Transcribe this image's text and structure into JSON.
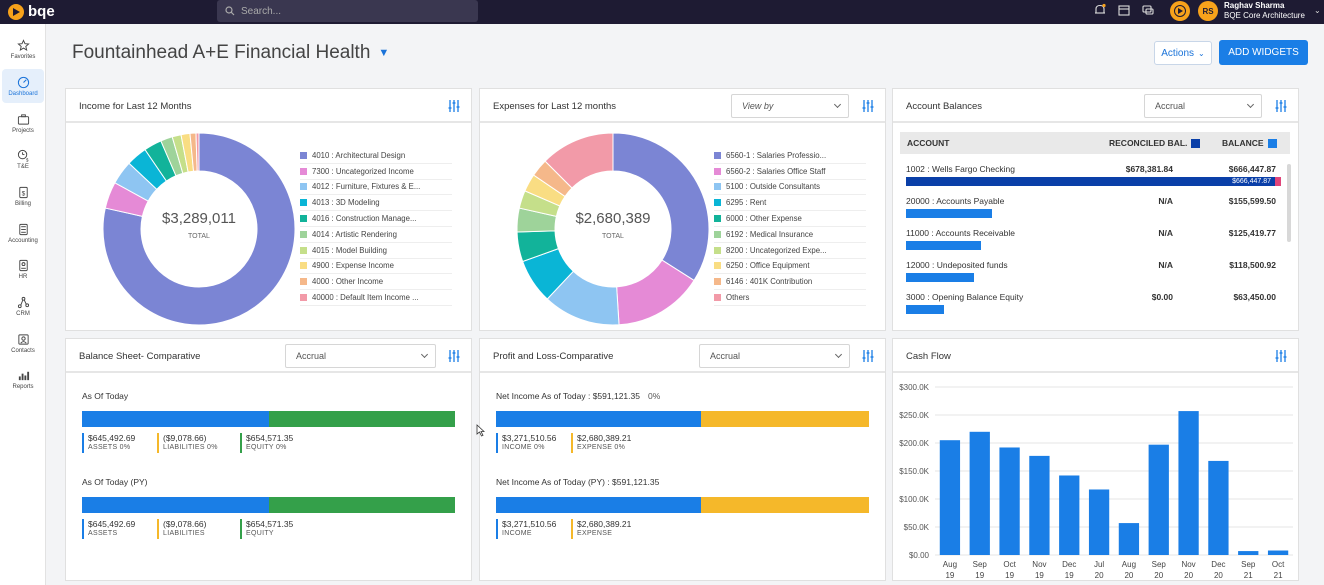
{
  "app": {
    "logo_text": "bqe"
  },
  "search": {
    "placeholder": "Search..."
  },
  "user": {
    "initials": "RS",
    "name": "Raghav Sharma",
    "company": "BQE Core Architecture"
  },
  "sidebar": {
    "items": [
      {
        "label": "Favorites",
        "icon": "star-icon"
      },
      {
        "label": "Dashboard",
        "icon": "dashboard-icon",
        "active": true
      },
      {
        "label": "Projects",
        "icon": "briefcase-icon"
      },
      {
        "label": "T&E",
        "icon": "clock-dollar-icon"
      },
      {
        "label": "Billing",
        "icon": "billing-icon"
      },
      {
        "label": "Accounting",
        "icon": "calculator-icon"
      },
      {
        "label": "HR",
        "icon": "id-card-icon"
      },
      {
        "label": "CRM",
        "icon": "network-icon"
      },
      {
        "label": "Contacts",
        "icon": "contacts-icon"
      },
      {
        "label": "Reports",
        "icon": "reports-icon"
      }
    ]
  },
  "header": {
    "title": "Fountainhead A+E Financial Health",
    "actions_label": "Actions",
    "add_widgets_label": "ADD WIDGETS"
  },
  "income": {
    "title": "Income for Last 12 Months",
    "total": "$3,289,011",
    "total_label": "TOTAL",
    "legend": [
      {
        "label": "4010 : Architectural Design",
        "color": "#7b85d4",
        "share": 0.785
      },
      {
        "label": "7300 : Uncategorized Income",
        "color": "#e58ad6",
        "share": 0.045
      },
      {
        "label": "4012 : Furniture, Fixtures & E...",
        "color": "#8ec5f2",
        "share": 0.04
      },
      {
        "label": "4013 : 3D Modeling",
        "color": "#0ab5d6",
        "share": 0.035
      },
      {
        "label": "4016 : Construction Manage...",
        "color": "#12b39a",
        "share": 0.03
      },
      {
        "label": "4014 : Artistic Rendering",
        "color": "#9ed39a",
        "share": 0.02
      },
      {
        "label": "4015 : Model Building",
        "color": "#c5df8a",
        "share": 0.015
      },
      {
        "label": "4900 : Expense Income",
        "color": "#f9dd83",
        "share": 0.015
      },
      {
        "label": "4000 : Other Income",
        "color": "#f5b88a",
        "share": 0.01
      },
      {
        "label": "40000 : Default Item Income ...",
        "color": "#f29aa8",
        "share": 0.005
      }
    ]
  },
  "expenses": {
    "title": "Expenses for Last 12 months",
    "view_by": "View by",
    "total": "$2,680,389",
    "total_label": "TOTAL",
    "legend": [
      {
        "label": "6560-1 : Salaries Professio...",
        "color": "#7b85d4",
        "share": 0.34
      },
      {
        "label": "6560-2 : Salaries Office Staff",
        "color": "#e58ad6",
        "share": 0.15
      },
      {
        "label": "5100 : Outside Consultants",
        "color": "#8ec5f2",
        "share": 0.13
      },
      {
        "label": "6295 : Rent",
        "color": "#0ab5d6",
        "share": 0.075
      },
      {
        "label": "6000 : Other Expense",
        "color": "#12b39a",
        "share": 0.05
      },
      {
        "label": "6192 : Medical Insurance",
        "color": "#9ed39a",
        "share": 0.04
      },
      {
        "label": "8200 : Uncategorized Expe...",
        "color": "#c5df8a",
        "share": 0.03
      },
      {
        "label": "6250 : Office Equipment",
        "color": "#f9dd83",
        "share": 0.03
      },
      {
        "label": "6146 : 401K Contribution",
        "color": "#f5b88a",
        "share": 0.03
      },
      {
        "label": "Others",
        "color": "#f29aa8",
        "share": 0.125
      }
    ]
  },
  "account_balances": {
    "title": "Account Balances",
    "filter": "Accrual",
    "col_account": "ACCOUNT",
    "col_reconciled": "RECONCILED BAL.",
    "col_balance": "BALANCE",
    "reconciled_color": "#0a3fa8",
    "balance_color": "#1a7ee6",
    "rows": [
      {
        "account": "1002 : Wells Fargo Checking",
        "reconciled": "$678,381.84",
        "balance": "$666,447.87",
        "bar_label": "$666,447.87",
        "level": 1.0
      },
      {
        "account": "20000 : Accounts Payable",
        "reconciled": "N/A",
        "balance": "$155,599.50",
        "level": 0.23
      },
      {
        "account": "11000 : Accounts Receivable",
        "reconciled": "N/A",
        "balance": "$125,419.77",
        "level": 0.2
      },
      {
        "account": "12000 : Undeposited funds",
        "reconciled": "N/A",
        "balance": "$118,500.92",
        "level": 0.18
      },
      {
        "account": "3000 : Opening Balance Equity",
        "reconciled": "$0.00",
        "balance": "$63,450.00",
        "level": 0.1
      }
    ]
  },
  "balance_sheet": {
    "title": "Balance Sheet- Comparative",
    "filter": "Accrual",
    "sections": [
      {
        "title": "As Of Today",
        "assets_share": 0.5,
        "stats": [
          {
            "value": "$645,492.69",
            "label": "ASSETS 0%",
            "color": "#1a7ee6"
          },
          {
            "value": "($9,078.66)",
            "label": "LIABILITIES 0%",
            "color": "#f5b82a"
          },
          {
            "value": "$654,571.35",
            "label": "EQUITY 0%",
            "color": "#34a04a"
          }
        ]
      },
      {
        "title": "As Of Today (PY)",
        "assets_share": 0.5,
        "stats": [
          {
            "value": "$645,492.69",
            "label": "ASSETS",
            "color": "#1a7ee6"
          },
          {
            "value": "($9,078.66)",
            "label": "LIABILITIES",
            "color": "#f5b82a"
          },
          {
            "value": "$654,571.35",
            "label": "EQUITY",
            "color": "#34a04a"
          }
        ]
      }
    ]
  },
  "profit_loss": {
    "title": "Profit and Loss-Comparative",
    "filter": "Accrual",
    "sections": [
      {
        "title": "Net Income As of Today : $591,121.35",
        "pct": "0%",
        "income_share": 0.55,
        "stats": [
          {
            "value": "$3,271,510.56",
            "label": "INCOME 0%",
            "color": "#1a7ee6"
          },
          {
            "value": "$2,680,389.21",
            "label": "EXPENSE 0%",
            "color": "#f5b82a"
          }
        ]
      },
      {
        "title": "Net Income As of Today (PY) : $591,121.35",
        "pct": "",
        "income_share": 0.55,
        "stats": [
          {
            "value": "$3,271,510.56",
            "label": "INCOME",
            "color": "#1a7ee6"
          },
          {
            "value": "$2,680,389.21",
            "label": "EXPENSE",
            "color": "#f5b82a"
          }
        ]
      }
    ]
  },
  "cash_flow": {
    "title": "Cash Flow",
    "chart_data": {
      "type": "bar",
      "title": "Cash Flow",
      "categories": [
        "Aug 19",
        "Sep 19",
        "Oct 19",
        "Nov 19",
        "Dec 19",
        "Jul 20",
        "Aug 20",
        "Sep 20",
        "Nov 20",
        "Dec 20",
        "Sep 21",
        "Oct 21"
      ],
      "values": [
        205000,
        220000,
        192000,
        177000,
        142000,
        117000,
        57000,
        197000,
        257000,
        168000,
        7000,
        8000
      ],
      "ylim": [
        0,
        300000
      ],
      "yticks": [
        "$0.00",
        "$50.0K",
        "$100.0K",
        "$150.0K",
        "$200.0K",
        "$250.0K",
        "$300.0K"
      ],
      "bar_color": "#1a7ee6",
      "grid": true
    }
  }
}
